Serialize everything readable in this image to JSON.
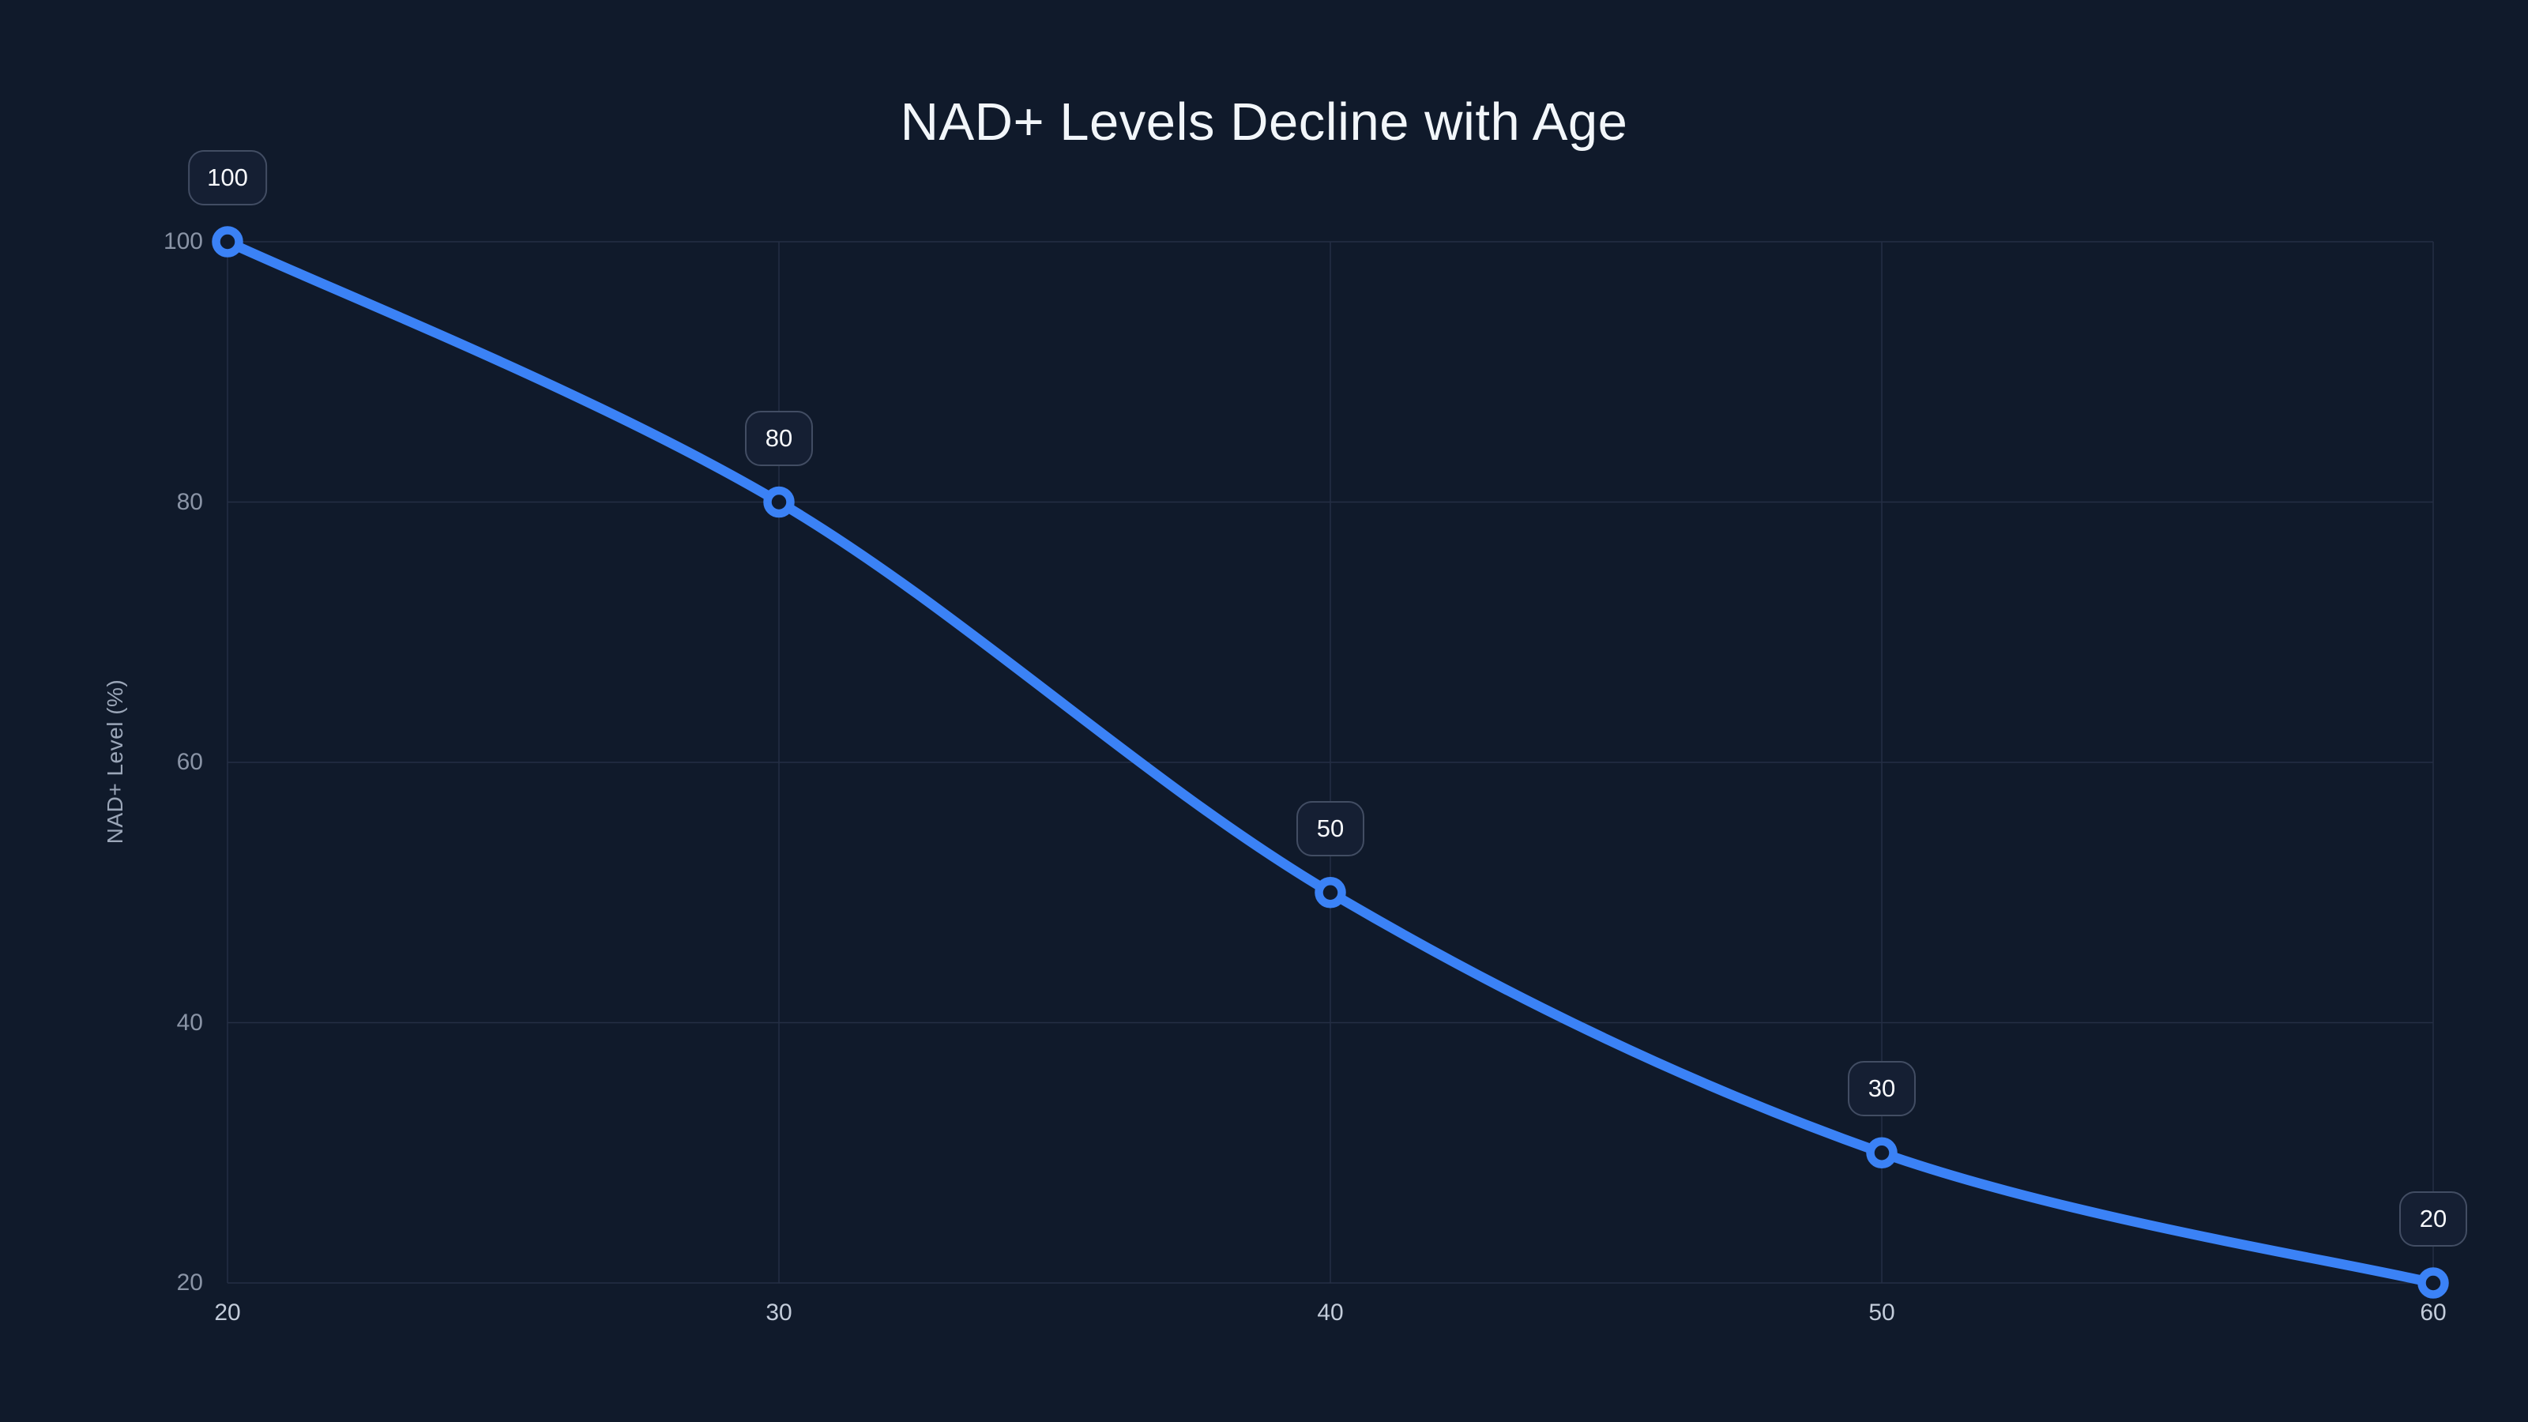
{
  "chart": {
    "title": "NAD+ Levels Decline with Age",
    "y_axis_label": "NAD+ Level (%)"
  },
  "chart_data": {
    "type": "line",
    "title": "NAD+ Levels Decline with Age",
    "xlabel": "",
    "ylabel": "NAD+ Level (%)",
    "x": [
      20,
      30,
      40,
      50,
      60
    ],
    "values": [
      100,
      80,
      50,
      30,
      20
    ],
    "point_labels": [
      "100",
      "80",
      "50",
      "30",
      "20"
    ],
    "x_ticks": [
      "20",
      "30",
      "40",
      "50",
      "60"
    ],
    "y_ticks": [
      "100",
      "80",
      "60",
      "40",
      "20"
    ],
    "xlim": [
      20,
      60
    ],
    "ylim": [
      20,
      100
    ],
    "grid": true,
    "smooth": true,
    "legend": false
  },
  "colors": {
    "background": "#101a2b",
    "line": "#3b82f6",
    "marker_fill": "#101a2b",
    "title_text": "#f2f6fa",
    "x_tick_text": "#c3ccda",
    "y_tick_text": "#8a94a6",
    "axis_label_text": "#9ba6b8",
    "grid_line": "#242e44",
    "label_box_bg": "#151f33",
    "label_box_border": "#424d63",
    "label_box_text": "#f7f9fc"
  }
}
